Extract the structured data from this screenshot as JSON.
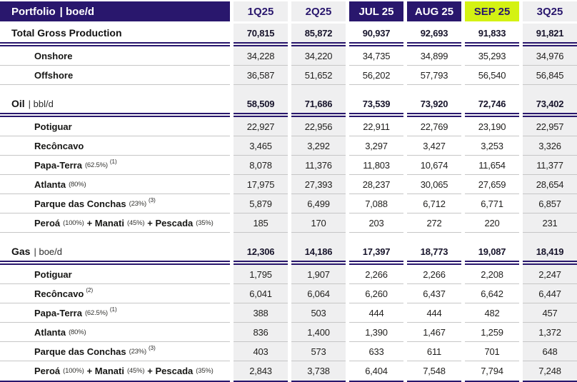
{
  "colors": {
    "navy": "#29176d",
    "lime_highlight": "#d4f213",
    "column_band_gray": "#efeff0",
    "row_separator": "#c6c6c6"
  },
  "header": {
    "title": "Portfolio",
    "title_unit": "| boe/d",
    "columns": [
      {
        "label": "1Q25",
        "style": "gray"
      },
      {
        "label": "2Q25",
        "style": "gray"
      },
      {
        "label": "JUL 25",
        "style": "navy"
      },
      {
        "label": "AUG 25",
        "style": "navy"
      },
      {
        "label": "SEP 25",
        "style": "lime"
      },
      {
        "label": "3Q25",
        "style": "gray"
      }
    ]
  },
  "sections": [
    {
      "title": "Total Gross Production",
      "unit": "",
      "values": [
        "70,815",
        "85,872",
        "90,937",
        "92,693",
        "91,833",
        "91,821"
      ],
      "rows": [
        {
          "name": "Onshore",
          "values": [
            "34,228",
            "34,220",
            "34,735",
            "34,899",
            "35,293",
            "34,976"
          ]
        },
        {
          "name": "Offshore",
          "values": [
            "36,587",
            "51,652",
            "56,202",
            "57,793",
            "56,540",
            "56,845"
          ]
        }
      ]
    },
    {
      "title": "Oil",
      "unit": "| bbl/d",
      "values": [
        "58,509",
        "71,686",
        "73,539",
        "73,920",
        "72,746",
        "73,402"
      ],
      "rows": [
        {
          "name": "Potiguar",
          "values": [
            "22,927",
            "22,956",
            "22,911",
            "22,769",
            "23,190",
            "22,957"
          ]
        },
        {
          "name": "Recôncavo",
          "values": [
            "3,465",
            "3,292",
            "3,297",
            "3,427",
            "3,253",
            "3,326"
          ]
        },
        {
          "name": "Papa-Terra",
          "pct": "(62.5%)",
          "sup": "(1)",
          "values": [
            "8,078",
            "11,376",
            "11,803",
            "10,674",
            "11,654",
            "11,377"
          ]
        },
        {
          "name": "Atlanta",
          "pct": "(80%)",
          "values": [
            "17,975",
            "27,393",
            "28,237",
            "30,065",
            "27,659",
            "28,654"
          ]
        },
        {
          "name": "Parque das Conchas",
          "pct": "(23%)",
          "sup": "(3)",
          "values": [
            "5,879",
            "6,499",
            "7,088",
            "6,712",
            "6,771",
            "6,857"
          ]
        },
        {
          "name": "Peroá",
          "pct": "(100%)",
          "name2": "+ Manati",
          "pct2": "(45%)",
          "name3": "+ Pescada",
          "pct3": "(35%)",
          "values": [
            "185",
            "170",
            "203",
            "272",
            "220",
            "231"
          ]
        }
      ]
    },
    {
      "title": "Gas",
      "unit": "| boe/d",
      "values": [
        "12,306",
        "14,186",
        "17,397",
        "18,773",
        "19,087",
        "18,419"
      ],
      "rows": [
        {
          "name": "Potiguar",
          "values": [
            "1,795",
            "1,907",
            "2,266",
            "2,266",
            "2,208",
            "2,247"
          ]
        },
        {
          "name": "Recôncavo",
          "sup": "(2)",
          "values": [
            "6,041",
            "6,064",
            "6,260",
            "6,437",
            "6,642",
            "6,447"
          ]
        },
        {
          "name": "Papa-Terra",
          "pct": "(62.5%)",
          "sup": "(1)",
          "values": [
            "388",
            "503",
            "444",
            "444",
            "482",
            "457"
          ]
        },
        {
          "name": "Atlanta",
          "pct": "(80%)",
          "values": [
            "836",
            "1,400",
            "1,390",
            "1,467",
            "1,259",
            "1,372"
          ]
        },
        {
          "name": "Parque das Conchas",
          "pct": "(23%)",
          "sup": "(3)",
          "values": [
            "403",
            "573",
            "633",
            "611",
            "701",
            "648"
          ]
        },
        {
          "name": "Peroá",
          "pct": "(100%)",
          "name2": "+ Manati",
          "pct2": "(45%)",
          "name3": "+ Pescada",
          "pct3": "(35%)",
          "values": [
            "2,843",
            "3,738",
            "6,404",
            "7,548",
            "7,794",
            "7,248"
          ]
        }
      ]
    }
  ]
}
